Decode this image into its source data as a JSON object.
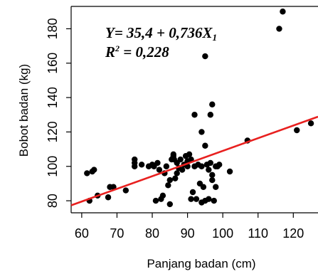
{
  "chart_data": {
    "type": "scatter",
    "title": "",
    "xlabel": "Panjang badan (cm)",
    "ylabel": "Bobot badan (kg)",
    "xlim": [
      57,
      127
    ],
    "ylim": [
      73,
      193
    ],
    "xticks": [
      60,
      70,
      80,
      90,
      100,
      110,
      120
    ],
    "yticks": [
      80,
      100,
      120,
      140,
      160,
      180
    ],
    "xtick_labels": [
      "60",
      "70",
      "80",
      "90",
      "100",
      "110",
      "120"
    ],
    "ytick_labels": [
      "80",
      "100",
      "120",
      "140",
      "160",
      "180"
    ],
    "grid": false,
    "point_color": "#000000",
    "line_color": "#e8201f",
    "regression": {
      "intercept": 35.4,
      "slope": 0.736
    },
    "annotations": {
      "equation": "Y= 35,4 + 0,736X",
      "equation_subscript": "1",
      "r2_prefix": "R",
      "r2_superscript": "2",
      "r2_value": " = 0,228"
    },
    "points": [
      [
        61.5,
        96
      ],
      [
        62.2,
        80
      ],
      [
        63,
        97
      ],
      [
        63.5,
        98
      ],
      [
        64.5,
        83
      ],
      [
        67.5,
        82
      ],
      [
        68,
        88
      ],
      [
        69,
        88
      ],
      [
        72.5,
        86
      ],
      [
        75,
        100
      ],
      [
        75,
        102
      ],
      [
        75,
        104
      ],
      [
        77,
        101
      ],
      [
        79,
        100
      ],
      [
        80,
        101
      ],
      [
        80.5,
        100
      ],
      [
        81,
        80
      ],
      [
        81.5,
        102
      ],
      [
        82,
        98
      ],
      [
        82.5,
        81
      ],
      [
        83,
        83
      ],
      [
        83.5,
        96
      ],
      [
        84,
        100
      ],
      [
        84.5,
        89
      ],
      [
        85,
        92
      ],
      [
        85.5,
        104
      ],
      [
        85,
        78
      ],
      [
        86,
        106
      ],
      [
        86,
        107
      ],
      [
        86.2,
        104
      ],
      [
        86.5,
        93
      ],
      [
        87,
        102
      ],
      [
        87,
        96
      ],
      [
        87.5,
        99
      ],
      [
        88,
        104
      ],
      [
        88.5,
        98
      ],
      [
        89,
        101
      ],
      [
        89.5,
        106
      ],
      [
        90,
        103
      ],
      [
        90,
        100
      ],
      [
        90.5,
        107
      ],
      [
        91,
        104
      ],
      [
        91,
        81
      ],
      [
        91.5,
        85
      ],
      [
        92,
        100
      ],
      [
        92,
        130
      ],
      [
        92.5,
        81
      ],
      [
        93,
        101
      ],
      [
        93.5,
        90
      ],
      [
        94,
        100
      ],
      [
        94,
        120
      ],
      [
        94,
        79
      ],
      [
        94.5,
        88
      ],
      [
        95,
        112
      ],
      [
        95,
        80
      ],
      [
        95,
        164
      ],
      [
        95.5,
        101
      ],
      [
        96,
        98
      ],
      [
        96,
        81
      ],
      [
        96.5,
        130
      ],
      [
        96.5,
        102
      ],
      [
        97,
        136
      ],
      [
        97,
        95
      ],
      [
        97,
        92
      ],
      [
        97.5,
        80
      ],
      [
        98,
        88
      ],
      [
        98,
        100
      ],
      [
        98.5,
        100
      ],
      [
        99,
        101
      ],
      [
        102,
        97
      ],
      [
        107,
        115
      ],
      [
        116,
        180
      ],
      [
        117,
        190
      ],
      [
        121,
        121
      ],
      [
        125,
        125
      ]
    ]
  }
}
